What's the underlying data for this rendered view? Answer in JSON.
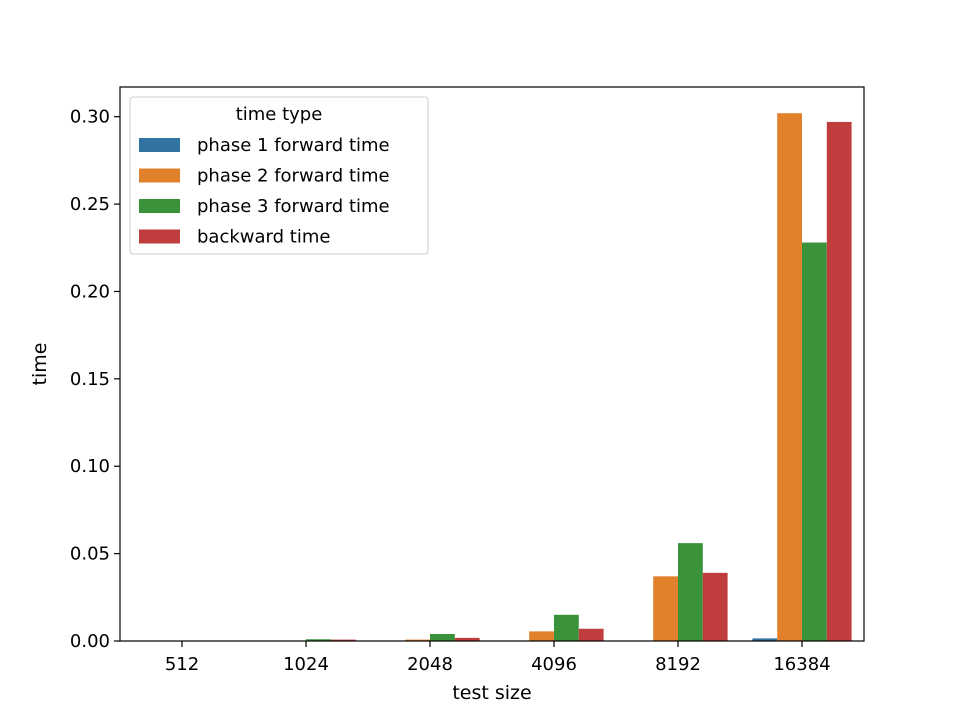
{
  "chart_data": {
    "type": "bar",
    "title": "",
    "xlabel": "test size",
    "ylabel": "time",
    "ylim": [
      0,
      0.317
    ],
    "yticks": [
      0.0,
      0.05,
      0.1,
      0.15,
      0.2,
      0.25,
      0.3
    ],
    "ytick_labels": [
      "0.00",
      "0.05",
      "0.10",
      "0.15",
      "0.20",
      "0.25",
      "0.30"
    ],
    "categories": [
      "512",
      "1024",
      "2048",
      "4096",
      "8192",
      "16384"
    ],
    "grid": false,
    "legend": {
      "title": "time type",
      "placement": "top-left"
    },
    "series": [
      {
        "name": "phase 1 forward time",
        "color": "#3274a1",
        "values": [
          0.0,
          0.0,
          0.0,
          0.0,
          0.0,
          0.0015
        ]
      },
      {
        "name": "phase 2 forward time",
        "color": "#e1812c",
        "values": [
          0.0,
          0.0002,
          0.0008,
          0.0055,
          0.037,
          0.302
        ]
      },
      {
        "name": "phase 3 forward time",
        "color": "#3a923a",
        "values": [
          0.0001,
          0.001,
          0.004,
          0.015,
          0.056,
          0.228
        ]
      },
      {
        "name": "backward time",
        "color": "#c03d3e",
        "values": [
          0.0001,
          0.0008,
          0.0018,
          0.007,
          0.039,
          0.297
        ]
      }
    ]
  }
}
